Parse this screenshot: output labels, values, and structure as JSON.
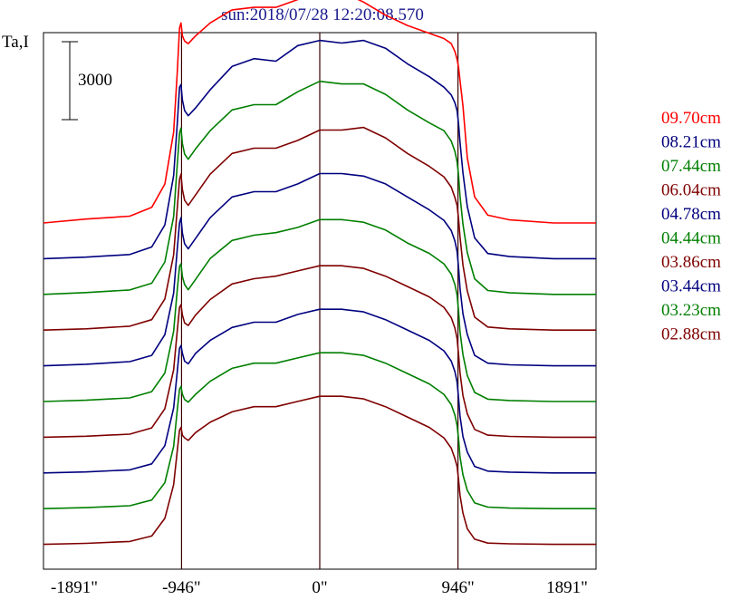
{
  "chart_data": {
    "type": "line",
    "title": "sun:2018/07/28 12:20:08.570",
    "ylabel": "Ta,I",
    "xlabel": "",
    "xlim": [
      -1891,
      1891
    ],
    "x_ticks": [
      {
        "value": -1891,
        "label": "-1891\""
      },
      {
        "value": -946,
        "label": "-946\""
      },
      {
        "value": 0,
        "label": "0\""
      },
      {
        "value": 946,
        "label": "946\""
      },
      {
        "value": 1891,
        "label": "1891\""
      }
    ],
    "vertical_markers": [
      -946,
      0,
      946
    ],
    "scale_bar": {
      "label": "3000",
      "value": 3000
    },
    "profile_x": [
      -1891,
      -1600,
      -1300,
      -1150,
      -1060,
      -1000,
      -975,
      -960,
      -950,
      -940,
      -925,
      -900,
      -850,
      -750,
      -600,
      -450,
      -300,
      -150,
      0,
      150,
      300,
      450,
      600,
      750,
      850,
      900,
      925,
      940,
      950,
      960,
      980,
      1010,
      1060,
      1150,
      1300,
      1600,
      1891
    ],
    "series": [
      {
        "name": "09.70cm",
        "color": "#ff0000",
        "y": [
          0,
          150,
          260,
          600,
          1500,
          3500,
          5800,
          7500,
          7700,
          7200,
          7000,
          6900,
          7200,
          7700,
          8200,
          8300,
          8300,
          8600,
          8900,
          8900,
          8500,
          8000,
          7600,
          7300,
          7100,
          6900,
          6600,
          6300,
          6000,
          5500,
          4500,
          2500,
          1000,
          300,
          120,
          0,
          0
        ]
      },
      {
        "name": "08.21cm",
        "color": "#00007f",
        "y": [
          0,
          60,
          160,
          450,
          1300,
          3200,
          5200,
          6600,
          6700,
          6100,
          5700,
          5500,
          5800,
          6500,
          7400,
          7700,
          7600,
          8200,
          8400,
          8300,
          8400,
          8100,
          7500,
          7000,
          6600,
          6300,
          6000,
          5700,
          5200,
          4500,
          3300,
          2000,
          800,
          200,
          80,
          0,
          0
        ]
      },
      {
        "name": "07.44cm",
        "color": "#007f00",
        "y": [
          0,
          70,
          170,
          430,
          1250,
          3000,
          5000,
          6200,
          6400,
          5800,
          5400,
          5200,
          5600,
          6300,
          7100,
          7300,
          7300,
          7800,
          8200,
          8100,
          8100,
          7700,
          7100,
          6600,
          6300,
          5900,
          5500,
          5100,
          4600,
          3800,
          2700,
          1600,
          600,
          150,
          60,
          0,
          0
        ]
      },
      {
        "name": "06.04cm",
        "color": "#7f0000",
        "y": [
          0,
          50,
          150,
          400,
          1200,
          2900,
          4700,
          5800,
          6000,
          5400,
          5000,
          4800,
          5200,
          6000,
          6800,
          7000,
          7000,
          7300,
          7700,
          7700,
          7800,
          7400,
          6800,
          6300,
          5900,
          5500,
          5100,
          4800,
          4300,
          3600,
          2500,
          1500,
          500,
          120,
          50,
          0,
          0
        ]
      },
      {
        "name": "04.78cm",
        "color": "#00007f",
        "y": [
          0,
          60,
          160,
          400,
          1200,
          2800,
          4500,
          5500,
          5700,
          5100,
          4700,
          4500,
          4900,
          5700,
          6500,
          6700,
          6700,
          7000,
          7400,
          7400,
          7300,
          7000,
          6500,
          6000,
          5600,
          5200,
          4800,
          4400,
          3800,
          3000,
          2000,
          1200,
          400,
          100,
          40,
          0,
          0
        ]
      },
      {
        "name": "04.44cm",
        "color": "#007f00",
        "y": [
          0,
          50,
          140,
          380,
          1100,
          2700,
          4300,
          5200,
          5300,
          4800,
          4500,
          4300,
          4700,
          5500,
          6200,
          6400,
          6500,
          6700,
          7000,
          7000,
          6900,
          6600,
          6100,
          5700,
          5300,
          4900,
          4500,
          4100,
          3500,
          2700,
          1800,
          1000,
          350,
          90,
          40,
          0,
          0
        ]
      },
      {
        "name": "03.86cm",
        "color": "#7f0000",
        "y": [
          0,
          40,
          120,
          360,
          1100,
          2600,
          4100,
          5000,
          5100,
          4700,
          4400,
          4300,
          4700,
          5300,
          5900,
          6100,
          6200,
          6400,
          6600,
          6600,
          6500,
          6200,
          5800,
          5400,
          5000,
          4600,
          4200,
          3800,
          3200,
          2500,
          1600,
          900,
          300,
          80,
          30,
          0,
          0
        ]
      },
      {
        "name": "03.44cm",
        "color": "#00007f",
        "y": [
          0,
          40,
          120,
          350,
          1050,
          2500,
          3900,
          4800,
          4900,
          4600,
          4300,
          4200,
          4600,
          5100,
          5600,
          5800,
          5800,
          6100,
          6300,
          6300,
          6200,
          5900,
          5500,
          5100,
          4700,
          4300,
          3900,
          3500,
          2900,
          2200,
          1400,
          800,
          250,
          70,
          30,
          0,
          0
        ]
      },
      {
        "name": "03.23cm",
        "color": "#007f00",
        "y": [
          0,
          40,
          110,
          330,
          1000,
          2400,
          3800,
          4600,
          4700,
          4400,
          4200,
          4100,
          4400,
          4900,
          5400,
          5600,
          5600,
          5800,
          6000,
          6000,
          5900,
          5600,
          5200,
          4800,
          4400,
          4000,
          3600,
          3200,
          2700,
          2000,
          1300,
          700,
          220,
          60,
          20,
          0,
          0
        ]
      },
      {
        "name": "02.88cm",
        "color": "#7f0000",
        "y": [
          0,
          40,
          110,
          320,
          1000,
          2300,
          3600,
          4400,
          4500,
          4200,
          4100,
          4000,
          4300,
          4700,
          5100,
          5300,
          5300,
          5500,
          5700,
          5700,
          5600,
          5300,
          4900,
          4500,
          4100,
          3700,
          3300,
          3000,
          2500,
          1900,
          1200,
          600,
          200,
          50,
          20,
          0,
          0
        ]
      }
    ],
    "legend_position": "right",
    "grid": false
  }
}
